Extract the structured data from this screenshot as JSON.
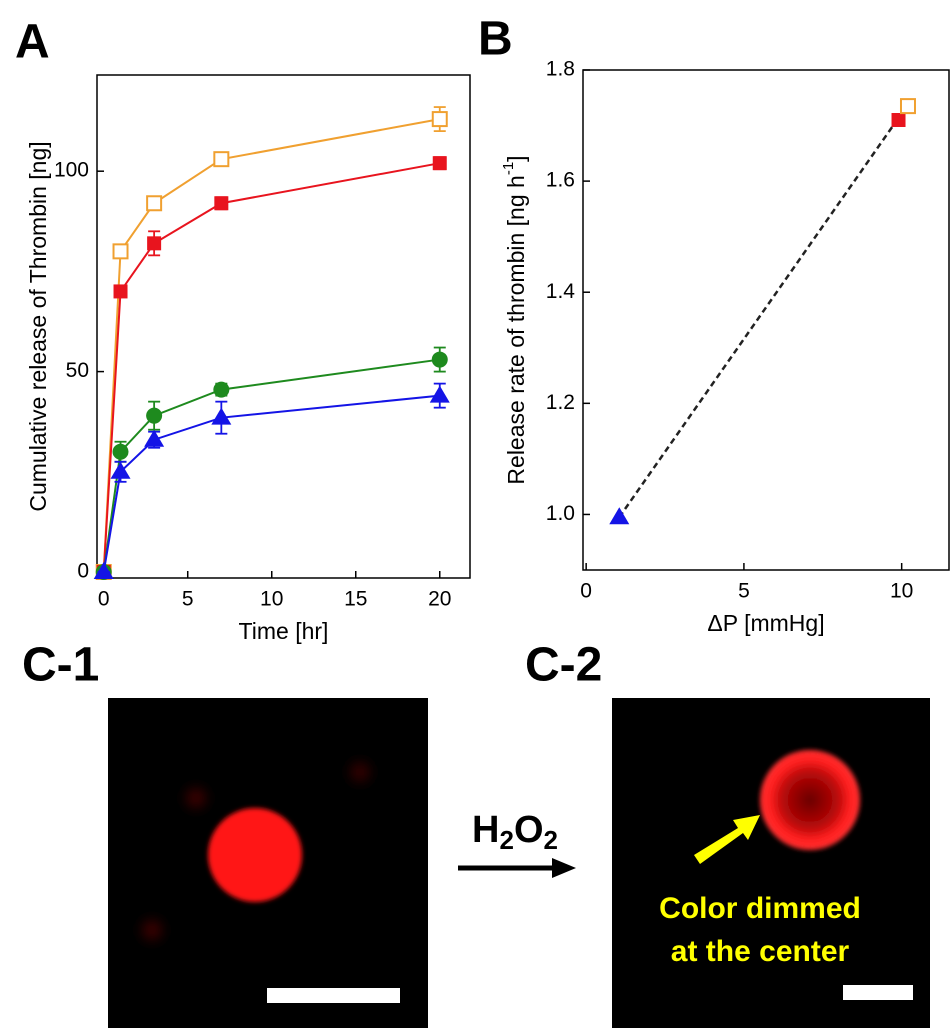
{
  "chart_data": [
    {
      "type": "line",
      "panel": "A",
      "xlabel": "Time [hr]",
      "ylabel": "Cumulative release of Thrombin [ng]",
      "x": [
        0,
        1,
        3,
        7,
        20
      ],
      "series": [
        {
          "color": "#f0a030",
          "marker": "square-open",
          "values": [
            0,
            80,
            92,
            103,
            113
          ],
          "errors": [
            0,
            1.5,
            1,
            1,
            3
          ]
        },
        {
          "color": "#e8141e",
          "marker": "square",
          "values": [
            0,
            70,
            82,
            92,
            102
          ],
          "errors": [
            0,
            1,
            3,
            1.5,
            1.5
          ]
        },
        {
          "color": "#1e8a1e",
          "marker": "circle",
          "values": [
            0,
            30,
            39,
            45.5,
            53
          ],
          "errors": [
            0,
            2.5,
            3.5,
            1.5,
            3
          ]
        },
        {
          "color": "#1414e6",
          "marker": "triangle",
          "values": [
            0,
            25,
            33,
            38.5,
            44
          ],
          "errors": [
            0,
            2.5,
            2,
            4,
            3
          ]
        }
      ],
      "xlim": [
        -0.4,
        21.8
      ],
      "ylim": [
        -1.5,
        124
      ],
      "xticks": [
        0,
        5,
        10,
        15,
        20
      ],
      "yticks": [
        0,
        50,
        100
      ]
    },
    {
      "type": "scatter",
      "panel": "B",
      "xlabel": "ΔP [mmHg]",
      "ylabel": {
        "text": "Release rate of thrombin [ng h",
        "sup": "-1",
        "end": "]"
      },
      "series": [
        {
          "color": "#1414e6",
          "marker": "triangle",
          "x": [
            1.05
          ],
          "values": [
            0.995
          ]
        },
        {
          "color": "#e8141e",
          "marker": "square",
          "x": [
            9.9
          ],
          "values": [
            1.71
          ]
        },
        {
          "color": "#f0a030",
          "marker": "square-open",
          "x": [
            10.2
          ],
          "values": [
            1.735
          ]
        }
      ],
      "trend": {
        "x": [
          1.05,
          10.1
        ],
        "y": [
          0.995,
          1.73
        ]
      },
      "xlim": [
        -0.1,
        11.5
      ],
      "ylim": [
        0.9,
        1.8
      ],
      "xticks": [
        0,
        5,
        10
      ],
      "yticks": [
        {
          "value": 1,
          "label": "1.0"
        },
        1.2,
        1.4,
        1.6,
        1.8
      ]
    }
  ],
  "panel_c": {
    "labels": [
      "C-1",
      "C-2"
    ],
    "reagent": [
      "H",
      "2",
      "O",
      "2"
    ],
    "annotation": [
      "Color dimmed",
      "at the center"
    ]
  }
}
